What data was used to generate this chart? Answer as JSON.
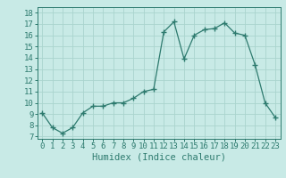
{
  "x": [
    0,
    1,
    2,
    3,
    4,
    5,
    6,
    7,
    8,
    9,
    10,
    11,
    12,
    13,
    14,
    15,
    16,
    17,
    18,
    19,
    20,
    21,
    22,
    23
  ],
  "y": [
    9.1,
    7.8,
    7.3,
    7.8,
    9.1,
    9.7,
    9.7,
    10.0,
    10.0,
    10.4,
    11.0,
    11.2,
    16.3,
    17.2,
    13.9,
    16.0,
    16.5,
    16.6,
    17.1,
    16.2,
    16.0,
    13.4,
    10.0,
    8.7
  ],
  "line_color": "#2d7a6e",
  "marker": "+",
  "marker_size": 4,
  "bg_color": "#c8eae6",
  "grid_color": "#aad4ce",
  "xlabel": "Humidex (Indice chaleur)",
  "ylabel_ticks": [
    7,
    8,
    9,
    10,
    11,
    12,
    13,
    14,
    15,
    16,
    17,
    18
  ],
  "xlim": [
    -0.5,
    23.5
  ],
  "ylim": [
    6.8,
    18.5
  ],
  "xticks": [
    0,
    1,
    2,
    3,
    4,
    5,
    6,
    7,
    8,
    9,
    10,
    11,
    12,
    13,
    14,
    15,
    16,
    17,
    18,
    19,
    20,
    21,
    22,
    23
  ],
  "tick_color": "#2d7a6e",
  "xlabel_fontsize": 7.5,
  "tick_fontsize": 6.5
}
